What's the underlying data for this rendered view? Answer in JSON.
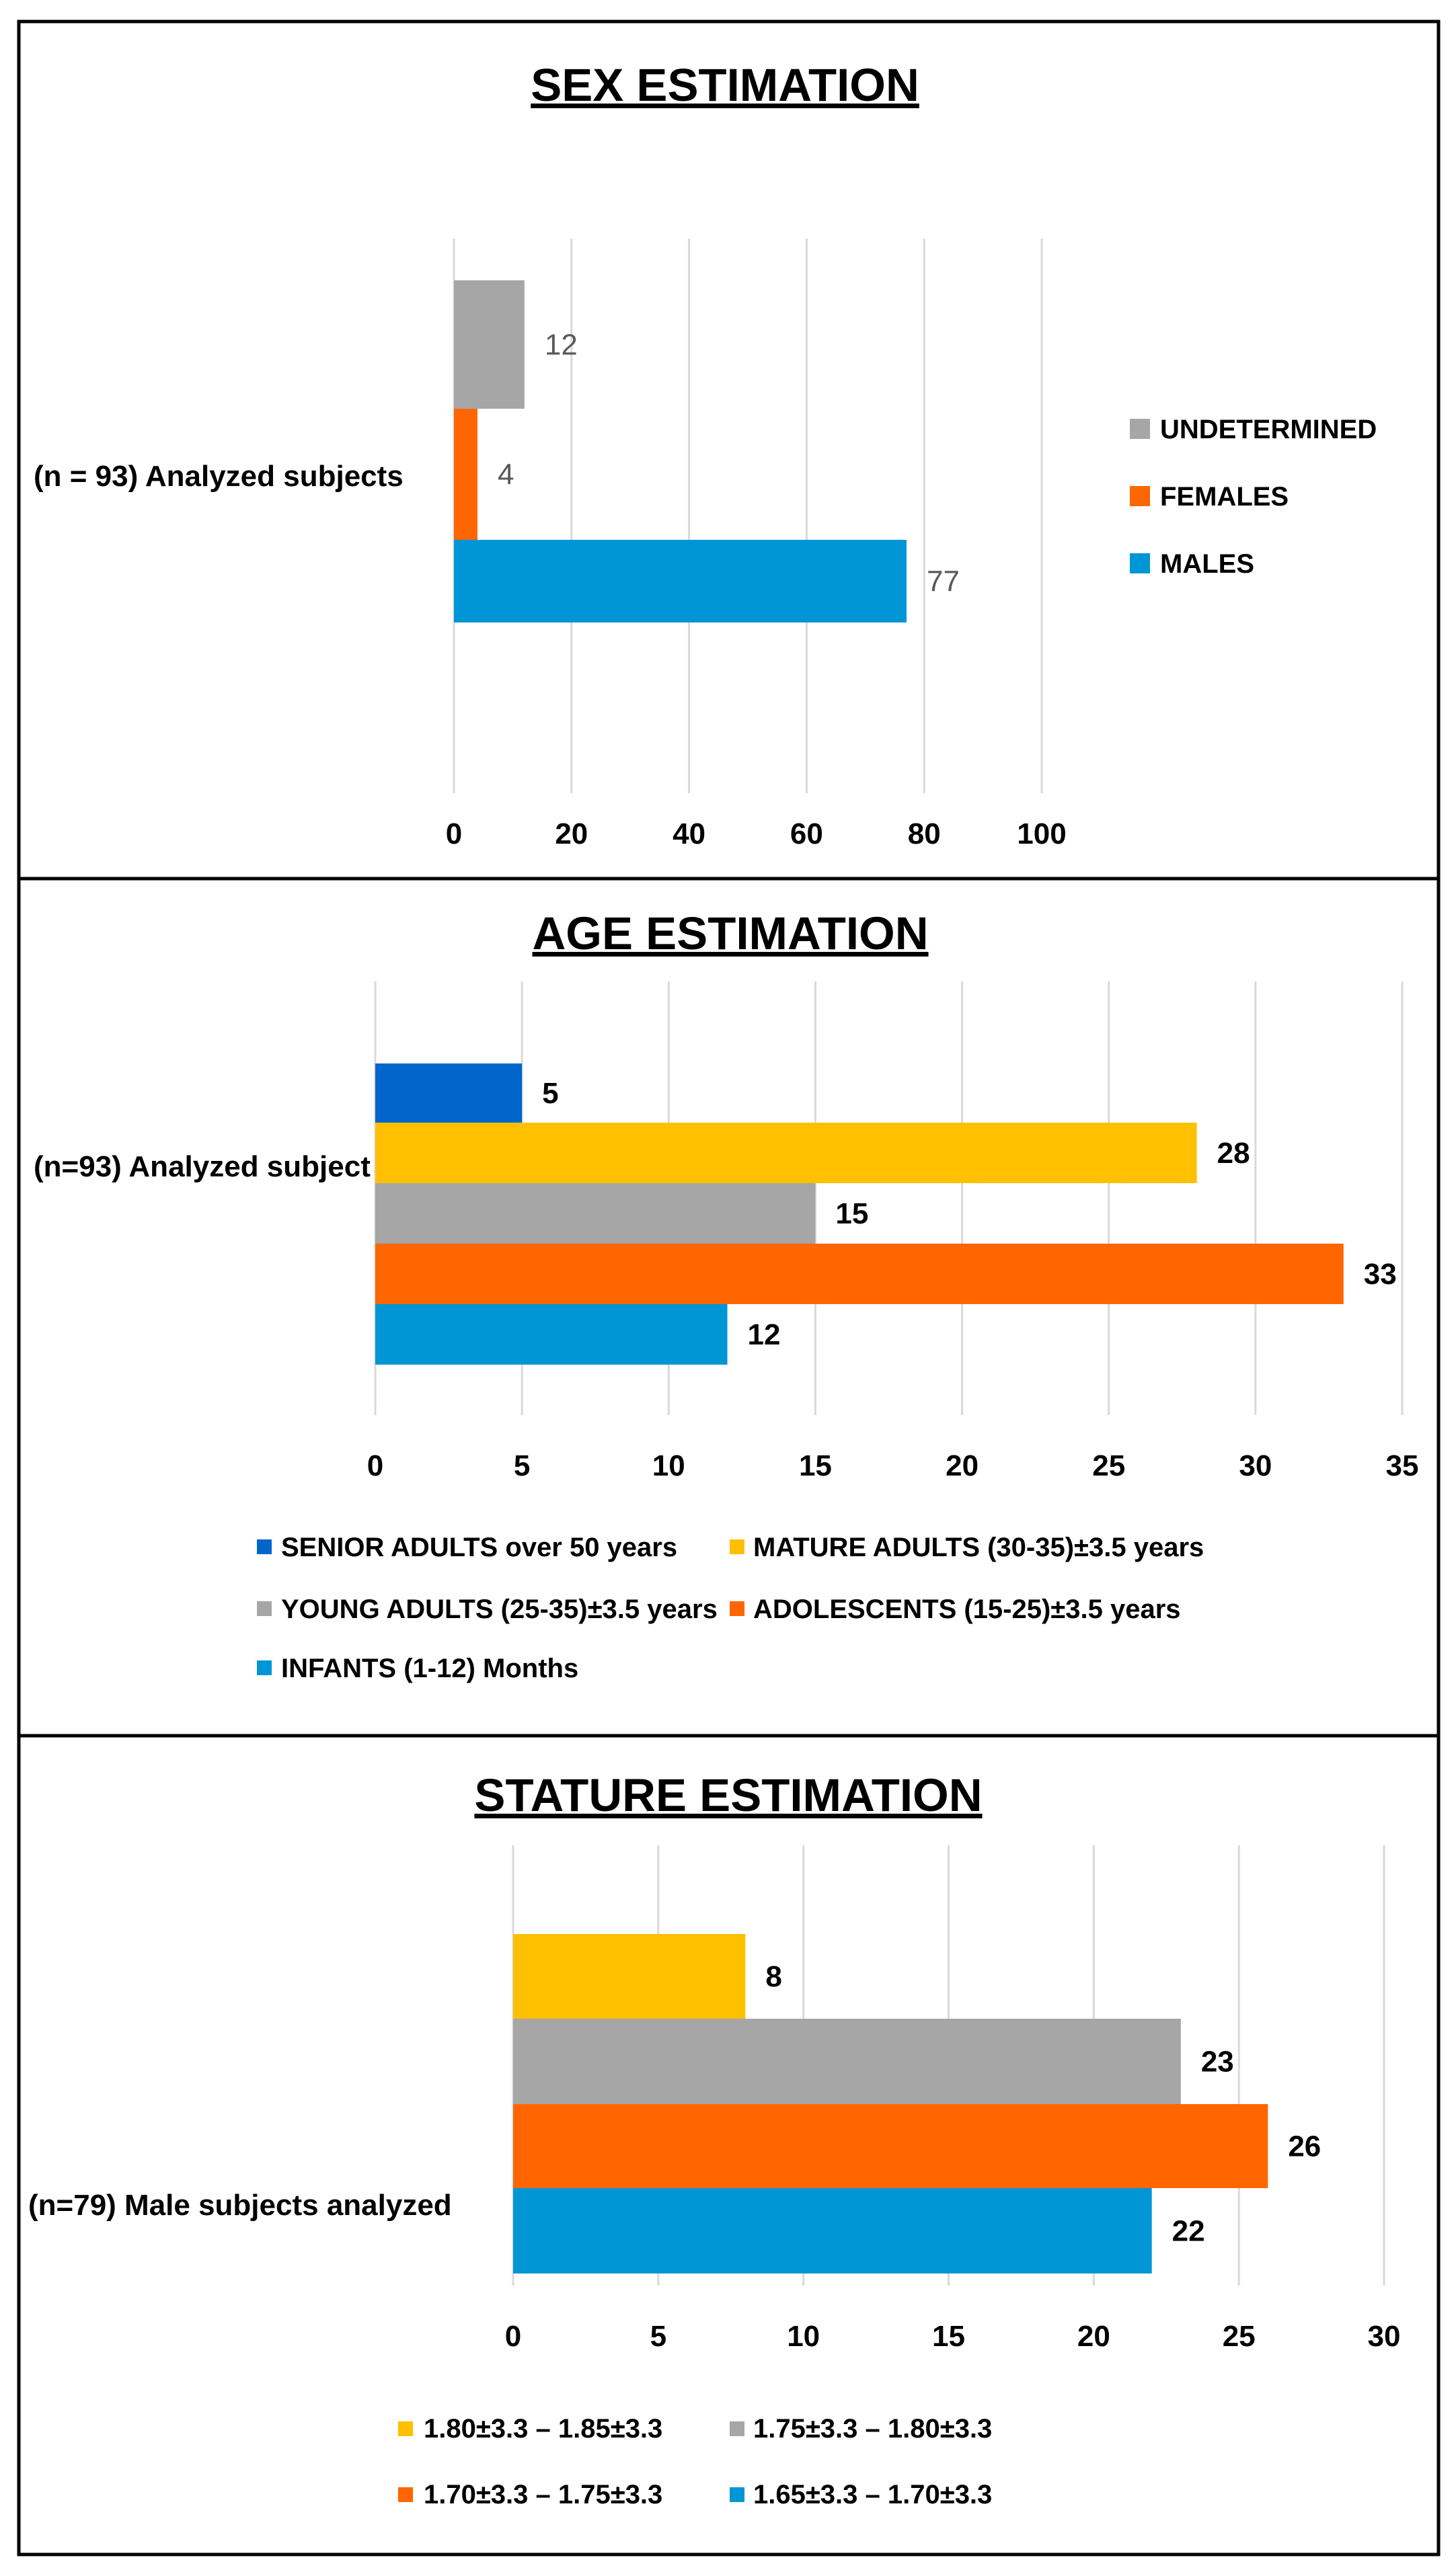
{
  "chart_data": [
    {
      "type": "bar",
      "orientation": "horizontal",
      "title": "SEX ESTIMATION",
      "categories": [
        "(n = 93) Analyzed subjects"
      ],
      "series": [
        {
          "name": "MALES",
          "values": [
            77
          ],
          "color": "#0096D6"
        },
        {
          "name": "FEMALES",
          "values": [
            4
          ],
          "color": "#FF6600"
        },
        {
          "name": "UNDETERMINED",
          "values": [
            12
          ],
          "color": "#A6A6A6"
        }
      ],
      "xlim": [
        0,
        100
      ],
      "xticks": [
        0,
        20,
        40,
        60,
        80,
        100
      ],
      "grid": true,
      "legend": "right",
      "data_label_style": "normal-gray"
    },
    {
      "type": "bar",
      "orientation": "horizontal",
      "title": "AGE ESTIMATION",
      "categories": [
        "(n=93) Analyzed subject"
      ],
      "series": [
        {
          "name": "INFANTS  (1-12) Months",
          "values": [
            12
          ],
          "color": "#0096D6"
        },
        {
          "name": "ADOLESCENTS (15-25)±3.5 years",
          "values": [
            33
          ],
          "color": "#FF6600"
        },
        {
          "name": "YOUNG ADULTS (25-35)±3.5 years",
          "values": [
            15
          ],
          "color": "#A6A6A6"
        },
        {
          "name": "MATURE ADULTS (30-35)±3.5 years",
          "values": [
            28
          ],
          "color": "#FFC000"
        },
        {
          "name": "SENIOR ADULTS over 50 years",
          "values": [
            5
          ],
          "color": "#0066CC"
        }
      ],
      "xlim": [
        0,
        35
      ],
      "xticks": [
        0,
        5,
        10,
        15,
        20,
        25,
        30,
        35
      ],
      "grid": true,
      "legend": "bottom",
      "legend_order": [
        "SENIOR ADULTS over 50 years",
        "MATURE ADULTS (30-35)±3.5 years",
        "YOUNG ADULTS (25-35)±3.5 years",
        "ADOLESCENTS (15-25)±3.5 years",
        "INFANTS  (1-12) Months"
      ],
      "data_label_style": "bold-black"
    },
    {
      "type": "bar",
      "orientation": "horizontal",
      "title": "STATURE ESTIMATION",
      "categories": [
        "(n=79) Male subjects analyzed"
      ],
      "series": [
        {
          "name": "1.65±3.3 – 1.70±3.3",
          "values": [
            22
          ],
          "color": "#0096D6"
        },
        {
          "name": "1.70±3.3 – 1.75±3.3",
          "values": [
            26
          ],
          "color": "#FF6600"
        },
        {
          "name": "1.75±3.3 – 1.80±3.3",
          "values": [
            23
          ],
          "color": "#A6A6A6"
        },
        {
          "name": "1.80±3.3 – 1.85±3.3",
          "values": [
            8
          ],
          "color": "#FFC000"
        }
      ],
      "xlim": [
        0,
        30
      ],
      "xticks": [
        0,
        5,
        10,
        15,
        20,
        25,
        30
      ],
      "grid": true,
      "legend": "bottom",
      "legend_order": [
        "1.80±3.3 – 1.85±3.3",
        "1.75±3.3 – 1.80±3.3",
        "1.70±3.3 – 1.75±3.3",
        "1.65±3.3 – 1.70±3.3"
      ],
      "data_label_style": "bold-black"
    }
  ]
}
